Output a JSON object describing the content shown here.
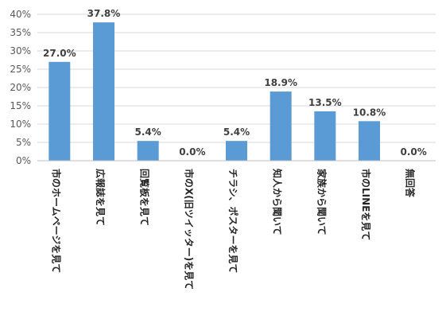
{
  "chart_data": {
    "type": "bar",
    "categories": [
      "市のホームページを見て",
      "広報誌を見て",
      "回覧板を見て",
      "市のX(旧ツイッター)を見て",
      "チラシ、ポスターを見て",
      "知人から聞いて",
      "家族から聞いて",
      "市のLINEを見て",
      "無回答"
    ],
    "values": [
      27.0,
      37.8,
      5.4,
      0.0,
      5.4,
      18.9,
      13.5,
      10.8,
      0.0
    ],
    "data_labels": [
      "27.0%",
      "37.8%",
      "5.4%",
      "0.0%",
      "5.4%",
      "18.9%",
      "13.5%",
      "10.8%",
      "0.0%"
    ],
    "y_ticks": [
      "0%",
      "5%",
      "10%",
      "15%",
      "20%",
      "25%",
      "30%",
      "35%",
      "40%"
    ],
    "y_tick_values": [
      0,
      5,
      10,
      15,
      20,
      25,
      30,
      35,
      40
    ],
    "ylim": [
      0,
      40
    ],
    "grid": true,
    "bar_color": "#5b9bd5"
  }
}
